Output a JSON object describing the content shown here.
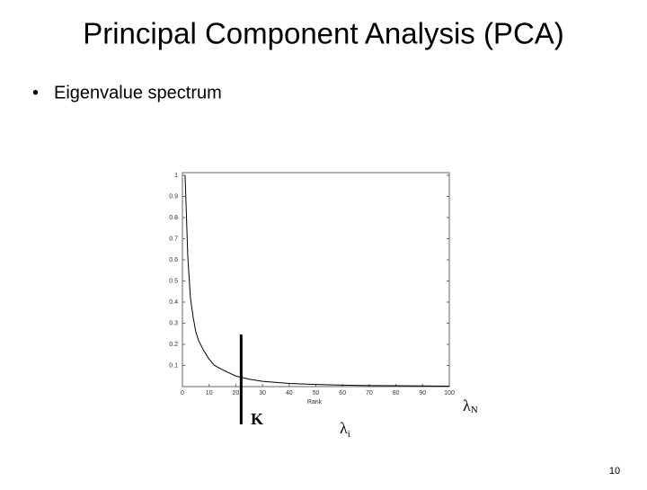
{
  "slide": {
    "title": "Principal Component Analysis (PCA)",
    "bullet": "Eigenvalue spectrum",
    "page_number": "10"
  },
  "chart_data": {
    "type": "line",
    "xlabel": "Rank",
    "x": [
      1,
      2,
      3,
      4,
      5,
      6,
      8,
      10,
      12,
      15,
      20,
      25,
      30,
      40,
      50,
      60,
      70,
      80,
      90,
      100
    ],
    "values": [
      1,
      0.62,
      0.42,
      0.33,
      0.26,
      0.22,
      0.17,
      0.13,
      0.1,
      0.08,
      0.05,
      0.035,
      0.025,
      0.015,
      0.01,
      0.007,
      0.005,
      0.004,
      0.003,
      0.002
    ],
    "color": "#000000",
    "xlim": [
      0,
      100
    ],
    "ylim": [
      0,
      1
    ],
    "xticks": [
      0,
      10,
      20,
      30,
      40,
      50,
      60,
      70,
      80,
      90,
      100
    ],
    "yticks": [
      0.1,
      0.2,
      0.3,
      0.4,
      0.5,
      0.6,
      0.7,
      0.8,
      0.9,
      1
    ],
    "k_marker": {
      "label": "K",
      "x": 22
    },
    "lambda_i": {
      "symbol": "λ",
      "subscript": "i"
    },
    "lambda_n": {
      "symbol": "λ",
      "subscript": "N"
    }
  }
}
